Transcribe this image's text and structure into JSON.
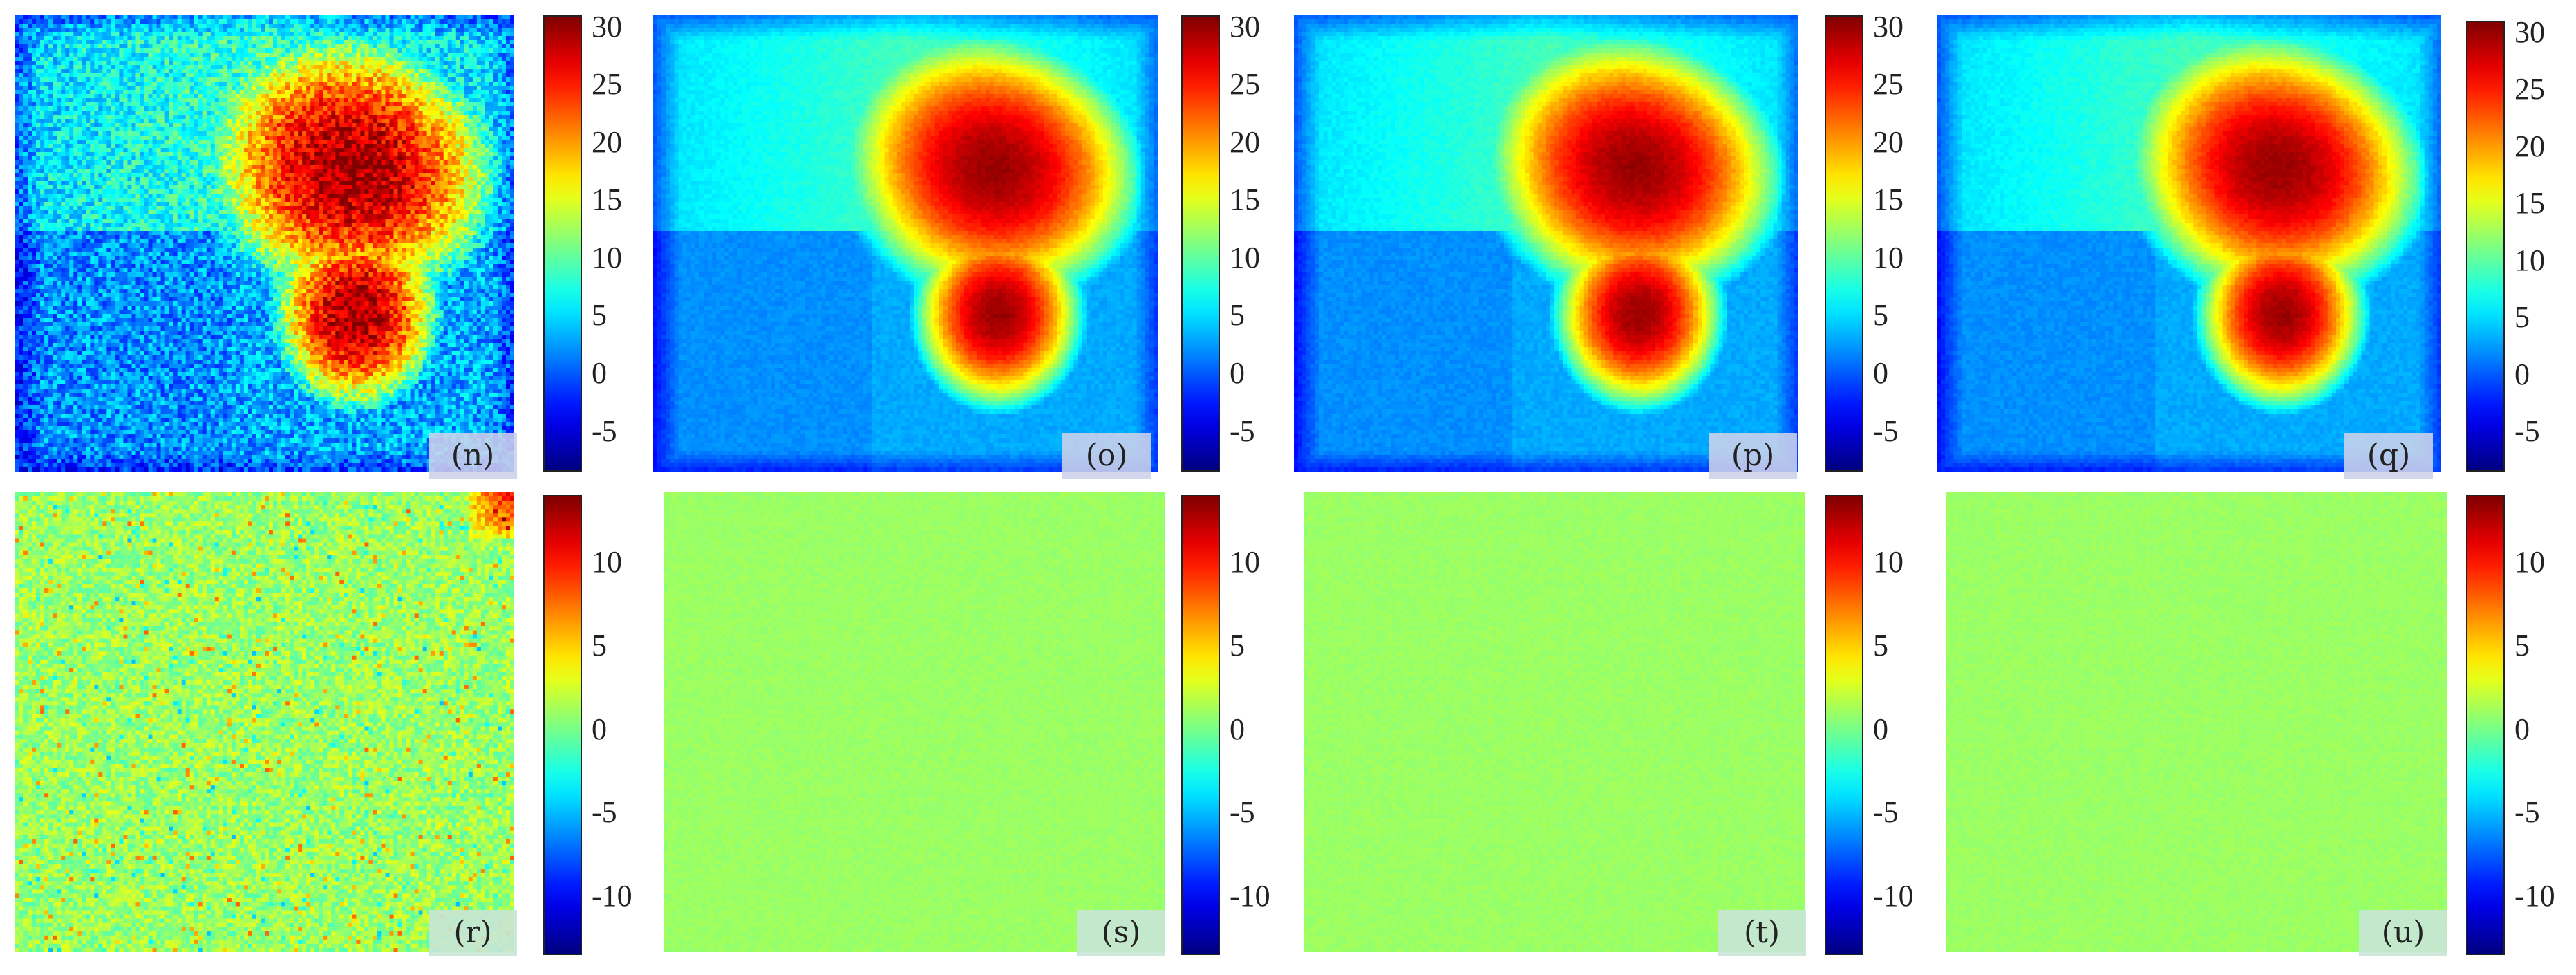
{
  "colormap": "jet",
  "colorbar_row1": {
    "ticks": [
      30,
      25,
      20,
      15,
      10,
      5,
      0,
      -5
    ],
    "min": -8.5,
    "max": 31
  },
  "colorbar_row2": {
    "ticks": [
      10,
      5,
      0,
      -5,
      -10
    ],
    "min": -13.5,
    "max": 14
  },
  "panels": [
    {
      "label": "(n)",
      "kind": "field",
      "noise": "high"
    },
    {
      "label": "(o)",
      "kind": "field",
      "noise": "low"
    },
    {
      "label": "(p)",
      "kind": "field",
      "noise": "low"
    },
    {
      "label": "(q)",
      "kind": "field",
      "noise": "low"
    },
    {
      "label": "(r)",
      "kind": "error",
      "noise": "high"
    },
    {
      "label": "(s)",
      "kind": "error",
      "noise": "low"
    },
    {
      "label": "(t)",
      "kind": "error",
      "noise": "low"
    },
    {
      "label": "(u)",
      "kind": "error",
      "noise": "low"
    }
  ],
  "chart_data": {
    "type": "heatmap",
    "title": "",
    "xlabel": "",
    "ylabel": "",
    "panels": [
      "(n)",
      "(o)",
      "(p)",
      "(q)",
      "(r)",
      "(s)",
      "(t)",
      "(u)"
    ],
    "row1_range": [
      -8.5,
      31
    ],
    "row2_range": [
      -13.5,
      14
    ],
    "row1_peak_value": 30,
    "row2_background_value": 1
  }
}
